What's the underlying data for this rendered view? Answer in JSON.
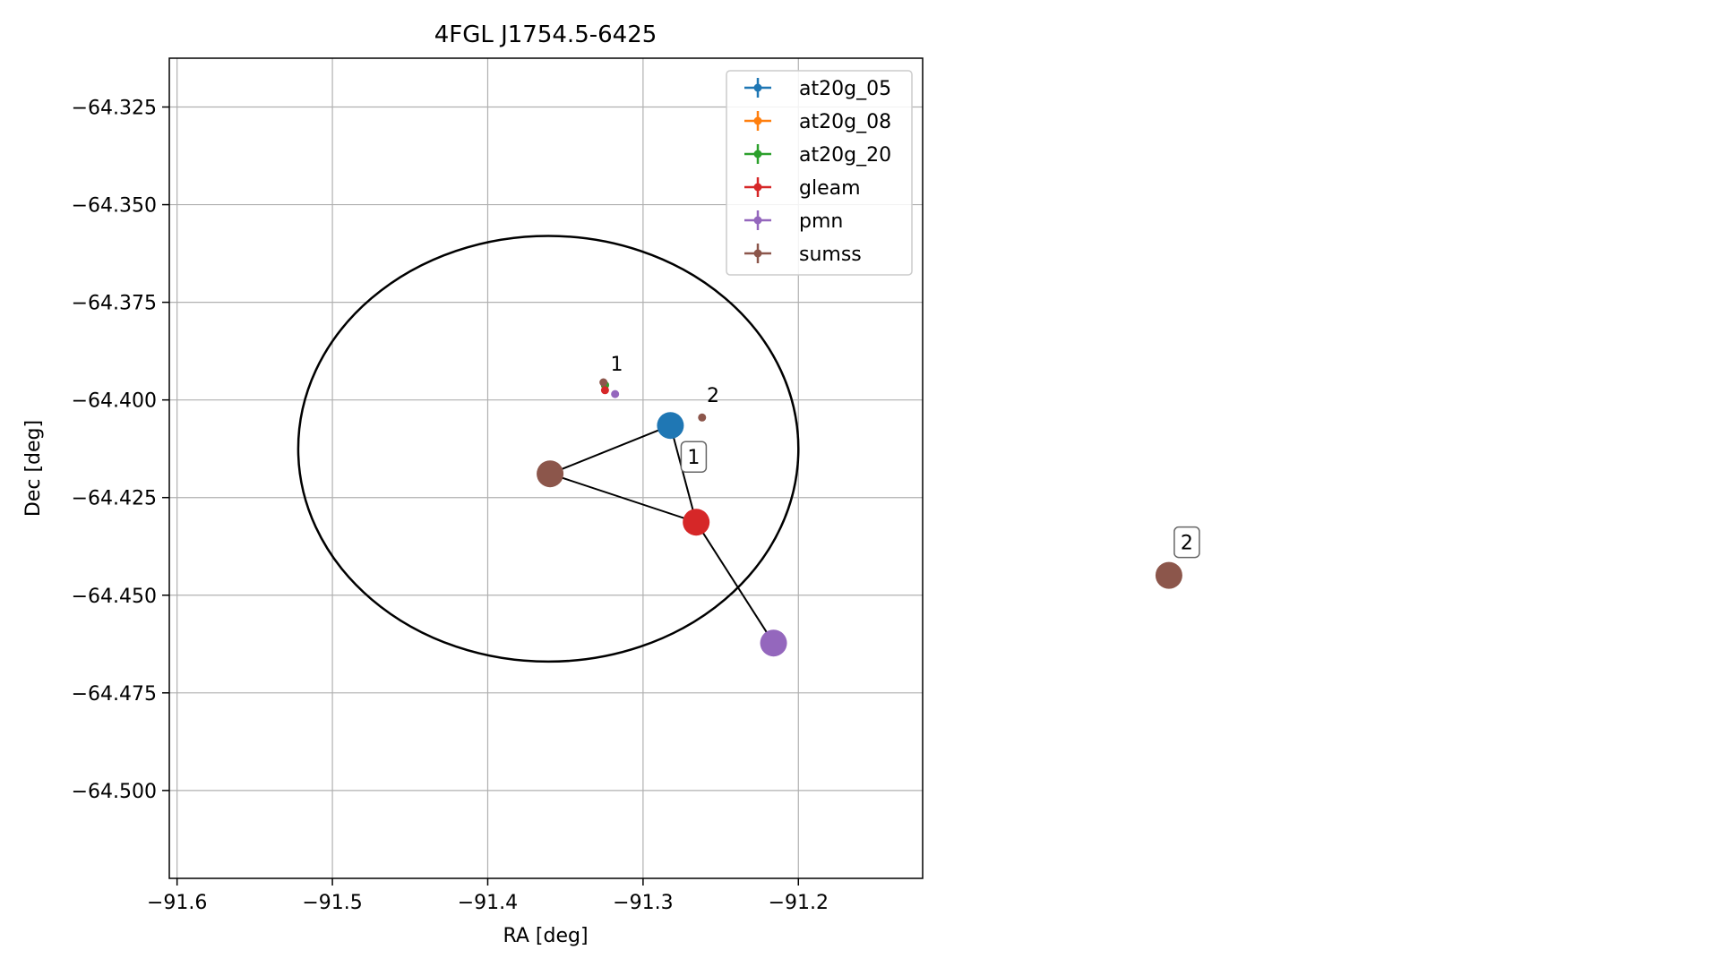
{
  "chart_data": [
    {
      "type": "scatter",
      "title": "4FGL J1754.5-6425",
      "xlabel": "RA [deg]",
      "ylabel": "Dec [deg]",
      "xlim": [
        -91.605,
        -91.12
      ],
      "ylim": [
        -64.5225,
        -64.3125
      ],
      "x_ticks": [
        -91.6,
        -91.5,
        -91.4,
        -91.3,
        -91.2
      ],
      "x_tick_labels": [
        "−91.6",
        "−91.5",
        "−91.4",
        "−91.3",
        "−91.2"
      ],
      "y_ticks": [
        -64.325,
        -64.35,
        -64.375,
        -64.4,
        -64.425,
        -64.45,
        -64.475,
        -64.5
      ],
      "y_tick_labels": [
        "−64.325",
        "−64.350",
        "−64.375",
        "−64.400",
        "−64.425",
        "−64.450",
        "−64.475",
        "−64.500"
      ],
      "grid": true,
      "legend_position": "top-right",
      "series": [
        {
          "name": "at20g_05",
          "color": "#1f77b4",
          "points": [
            {
              "x": -91.3245,
              "y": -64.3962
            }
          ]
        },
        {
          "name": "at20g_08",
          "color": "#ff7f0e",
          "points": [
            {
              "x": -91.3245,
              "y": -64.3962
            }
          ]
        },
        {
          "name": "at20g_20",
          "color": "#2ca02c",
          "points": [
            {
              "x": -91.3245,
              "y": -64.3962
            }
          ]
        },
        {
          "name": "gleam",
          "color": "#d62728",
          "points": [
            {
              "x": -91.3245,
              "y": -64.3975
            }
          ]
        },
        {
          "name": "pmn",
          "color": "#9467bd",
          "points": [
            {
              "x": -91.318,
              "y": -64.3985
            }
          ]
        },
        {
          "name": "sumss",
          "color": "#8c564b",
          "points": [
            {
              "x": -91.3255,
              "y": -64.3955
            },
            {
              "x": -91.262,
              "y": -64.4045
            }
          ]
        }
      ],
      "ellipse": {
        "center_x": -91.361,
        "center_y": -64.4125,
        "semi_axis_ra": 0.161,
        "semi_axis_dec": 0.0545,
        "color": "#000000"
      },
      "annotations": [
        {
          "text": "1",
          "x": -91.321,
          "y": -64.3925
        },
        {
          "text": "2",
          "x": -91.259,
          "y": -64.4005
        }
      ]
    },
    {
      "type": "network",
      "nodes": [
        {
          "id": "at20g-node",
          "color": "#1f77b4",
          "x": 0.39,
          "y": 0.44
        },
        {
          "id": "sumss-node-1",
          "color": "#8c564b",
          "x": 0.32,
          "y": 0.49
        },
        {
          "id": "gleam-node",
          "color": "#d62728",
          "x": 0.405,
          "y": 0.54
        },
        {
          "id": "pmn-node",
          "color": "#9467bd",
          "x": 0.45,
          "y": 0.665
        },
        {
          "id": "sumss-node-2",
          "color": "#8c564b",
          "x": 0.68,
          "y": 0.595
        }
      ],
      "edges": [
        [
          "at20g-node",
          "sumss-node-1"
        ],
        [
          "at20g-node",
          "gleam-node"
        ],
        [
          "sumss-node-1",
          "gleam-node"
        ],
        [
          "gleam-node",
          "pmn-node"
        ]
      ],
      "labels": [
        {
          "text": "1",
          "near": "at20g-node"
        },
        {
          "text": "2",
          "near": "sumss-node-2"
        }
      ]
    }
  ]
}
